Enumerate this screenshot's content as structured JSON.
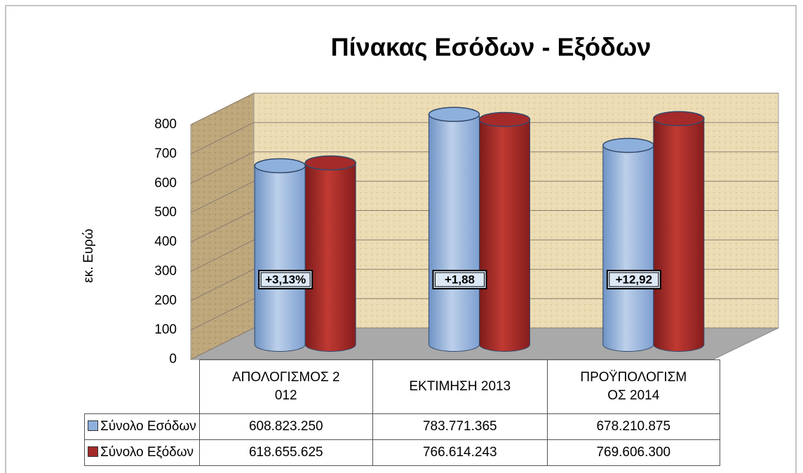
{
  "chart_data": {
    "type": "bar3d-cylinder",
    "title": "Πίνακας Εσόδων - Εξόδων",
    "ylabel": "εκ. Ευρώ",
    "categories": [
      "ΑΠΟΛΟΓΙΣΜΟΣ 2012",
      "ΕΚΤΙΜΗΣΗ 2013",
      "ΠΡΟΫΠΟΛΟΓΙΣΜΟΣ 2014"
    ],
    "series": [
      {
        "name": "Σύνολο Εσόδων",
        "color": "#8eb0dc",
        "values": [
          608.82325,
          783.771365,
          678.210875
        ],
        "value_labels": [
          "608.823.250",
          "783.771.365",
          "678.210.875"
        ]
      },
      {
        "name": "Σύνολο Εξόδων",
        "color": "#a52a2a",
        "values": [
          618.655625,
          766.614243,
          769.6063
        ],
        "value_labels": [
          "618.655.625",
          "766.614.243",
          "769.606.300"
        ]
      }
    ],
    "annotations": [
      "+3,13%",
      "+1,88",
      "+12,92"
    ],
    "ylim": [
      0,
      800
    ],
    "yticks": [
      0,
      100,
      200,
      300,
      400,
      500,
      600,
      700,
      800
    ],
    "grid": true
  }
}
